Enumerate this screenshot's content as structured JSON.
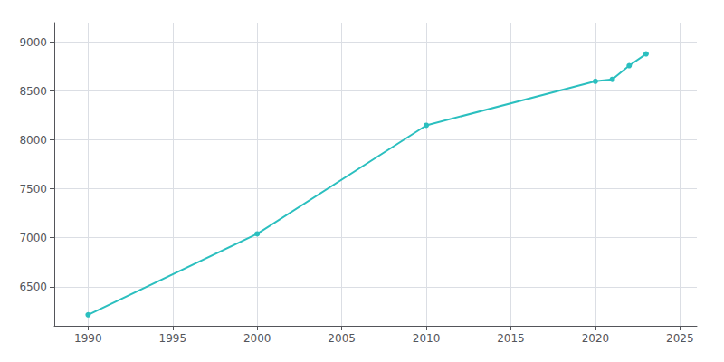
{
  "chart_data": {
    "type": "line",
    "x": [
      1990,
      2000,
      2010,
      2020,
      2021,
      2022,
      2023
    ],
    "values": [
      6213,
      7040,
      8150,
      8600,
      8620,
      8760,
      8880
    ],
    "color": "#2BBFBF",
    "marker": "circle",
    "xlim": [
      1988,
      2026
    ],
    "ylim": [
      6100,
      9200
    ],
    "xticks": [
      1990,
      1995,
      2000,
      2005,
      2010,
      2015,
      2020,
      2025
    ],
    "yticks": [
      6500,
      7000,
      7500,
      8000,
      8500,
      9000
    ],
    "grid": true
  }
}
